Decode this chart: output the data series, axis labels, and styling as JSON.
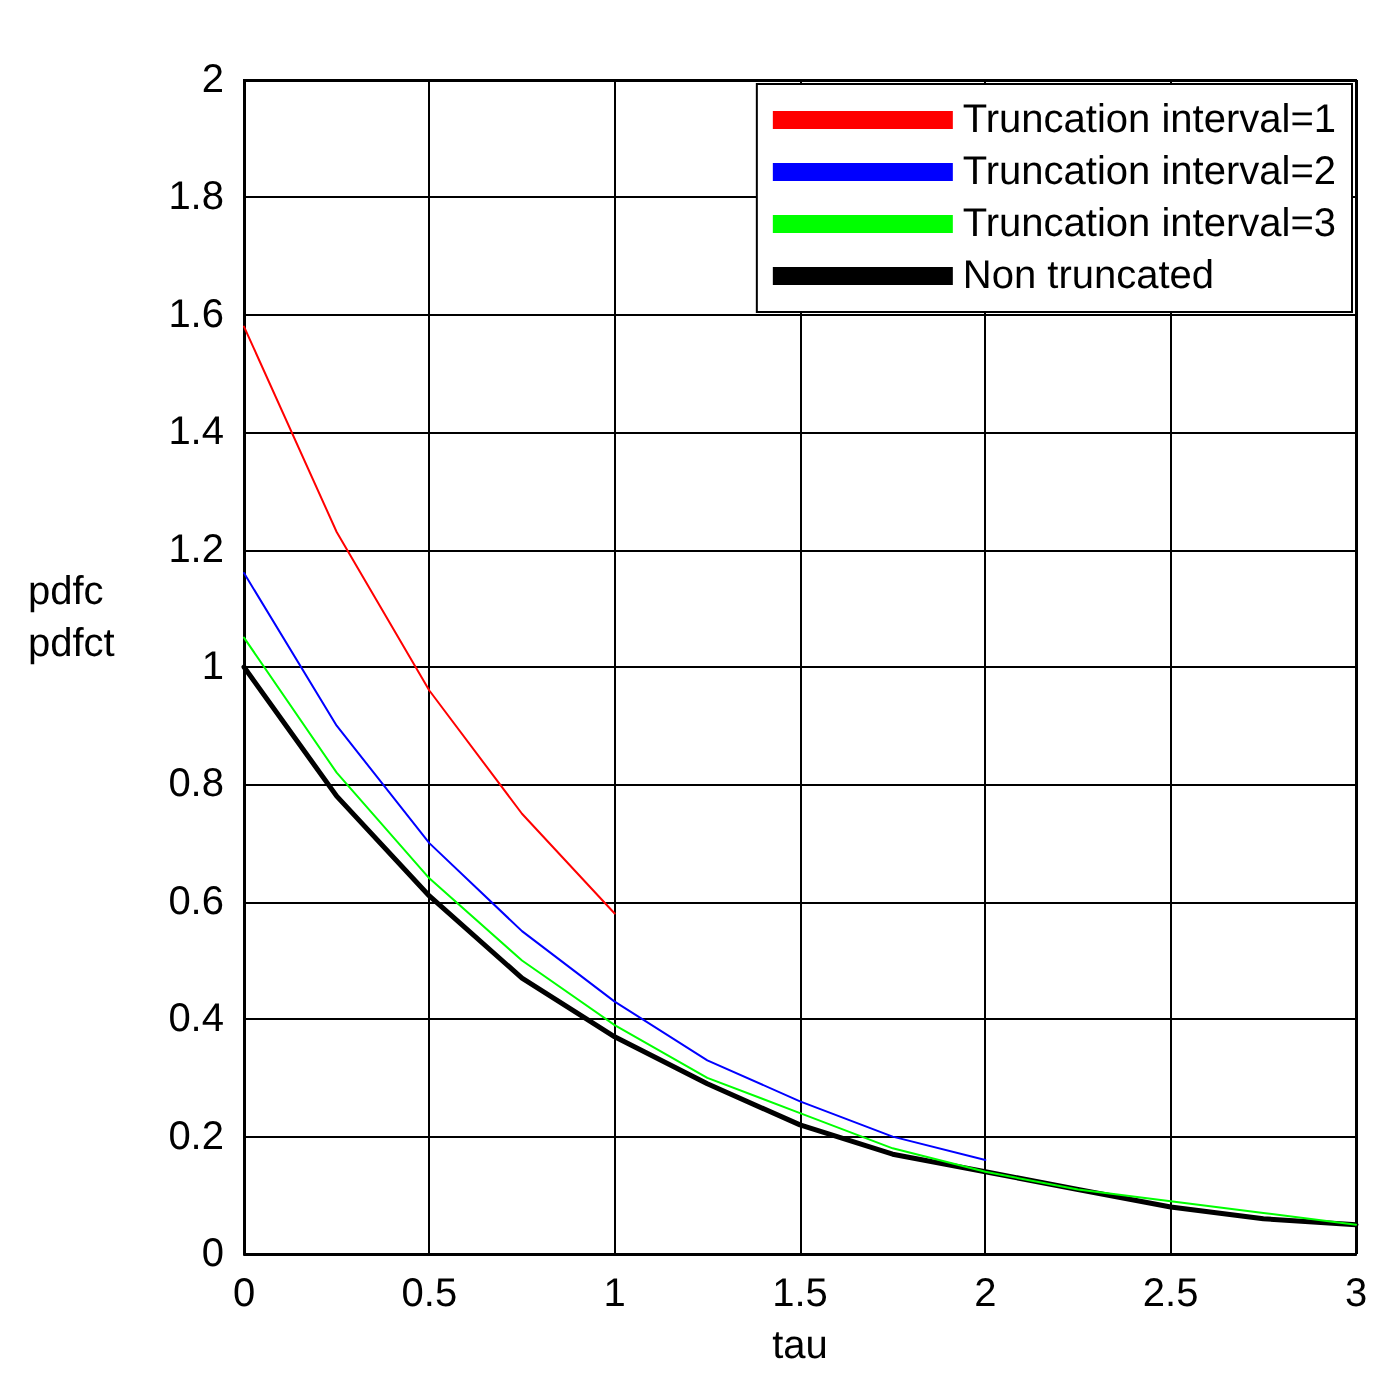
{
  "chart_data": {
    "type": "line",
    "xlabel": "tau",
    "ylabel": "pdfc\npdfct",
    "x": [
      0,
      0.25,
      0.5,
      0.75,
      1,
      1.25,
      1.5,
      1.75,
      2,
      2.25,
      2.5,
      2.75,
      3
    ],
    "series": [
      {
        "name": "Truncation interval=1",
        "color": "#ff0000",
        "x": [
          0,
          0.25,
          0.5,
          0.75,
          1
        ],
        "values": [
          1.58,
          1.23,
          0.96,
          0.75,
          0.58
        ]
      },
      {
        "name": "Truncation interval=2",
        "color": "#0000ff",
        "x": [
          0,
          0.25,
          0.5,
          0.75,
          1,
          1.25,
          1.5,
          1.75,
          2
        ],
        "values": [
          1.16,
          0.9,
          0.7,
          0.55,
          0.43,
          0.33,
          0.26,
          0.2,
          0.16
        ]
      },
      {
        "name": "Truncation interval=3",
        "color": "#00ff00",
        "values": [
          1.05,
          0.82,
          0.64,
          0.5,
          0.39,
          0.3,
          0.24,
          0.18,
          0.14,
          0.11,
          0.09,
          0.07,
          0.05
        ]
      },
      {
        "name": "Non truncated",
        "color": "#000000",
        "values": [
          1,
          0.78,
          0.61,
          0.47,
          0.37,
          0.29,
          0.22,
          0.17,
          0.14,
          0.11,
          0.08,
          0.06,
          0.05
        ]
      }
    ],
    "xlim": [
      0,
      3
    ],
    "xticks": [
      0,
      0.5,
      1,
      1.5,
      2,
      2.5,
      3
    ],
    "ylim": [
      0,
      2
    ],
    "yticks": [
      0,
      0.2,
      0.4,
      0.6,
      0.8,
      1,
      1.2,
      1.4,
      1.6,
      1.8,
      2
    ],
    "grid": true,
    "legend": "top right",
    "marker": "none",
    "line_style": "solid"
  }
}
